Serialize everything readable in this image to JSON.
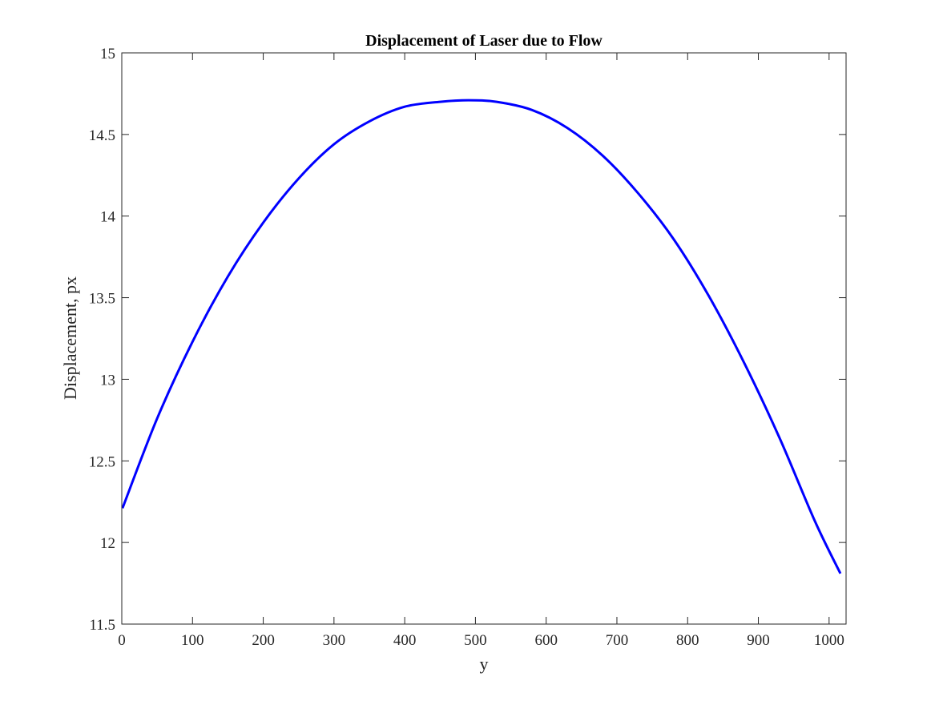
{
  "chart_data": {
    "type": "line",
    "title": "Displacement of Laser due to Flow",
    "xlabel": "y",
    "ylabel": "Displacement, px",
    "xlim": [
      0,
      1024
    ],
    "ylim": [
      11.5,
      15
    ],
    "xticks": [
      "0",
      "100",
      "200",
      "300",
      "400",
      "500",
      "600",
      "700",
      "800",
      "900",
      "1000"
    ],
    "yticks": [
      "11.5",
      "12",
      "12.5",
      "13",
      "13.5",
      "14",
      "14.5",
      "15"
    ],
    "grid": false,
    "legend": "none",
    "series": [
      {
        "color": "#0000ff",
        "x": [
          1,
          50,
          100,
          150,
          200,
          250,
          300,
          350,
          400,
          450,
          490,
          530,
          580,
          630,
          680,
          730,
          780,
          830,
          880,
          930,
          980,
          1016
        ],
        "y": [
          12.21,
          12.76,
          13.23,
          13.63,
          13.96,
          14.23,
          14.44,
          14.58,
          14.67,
          14.7,
          14.71,
          14.7,
          14.65,
          14.54,
          14.37,
          14.14,
          13.86,
          13.51,
          13.1,
          12.64,
          12.13,
          11.81
        ]
      }
    ]
  }
}
